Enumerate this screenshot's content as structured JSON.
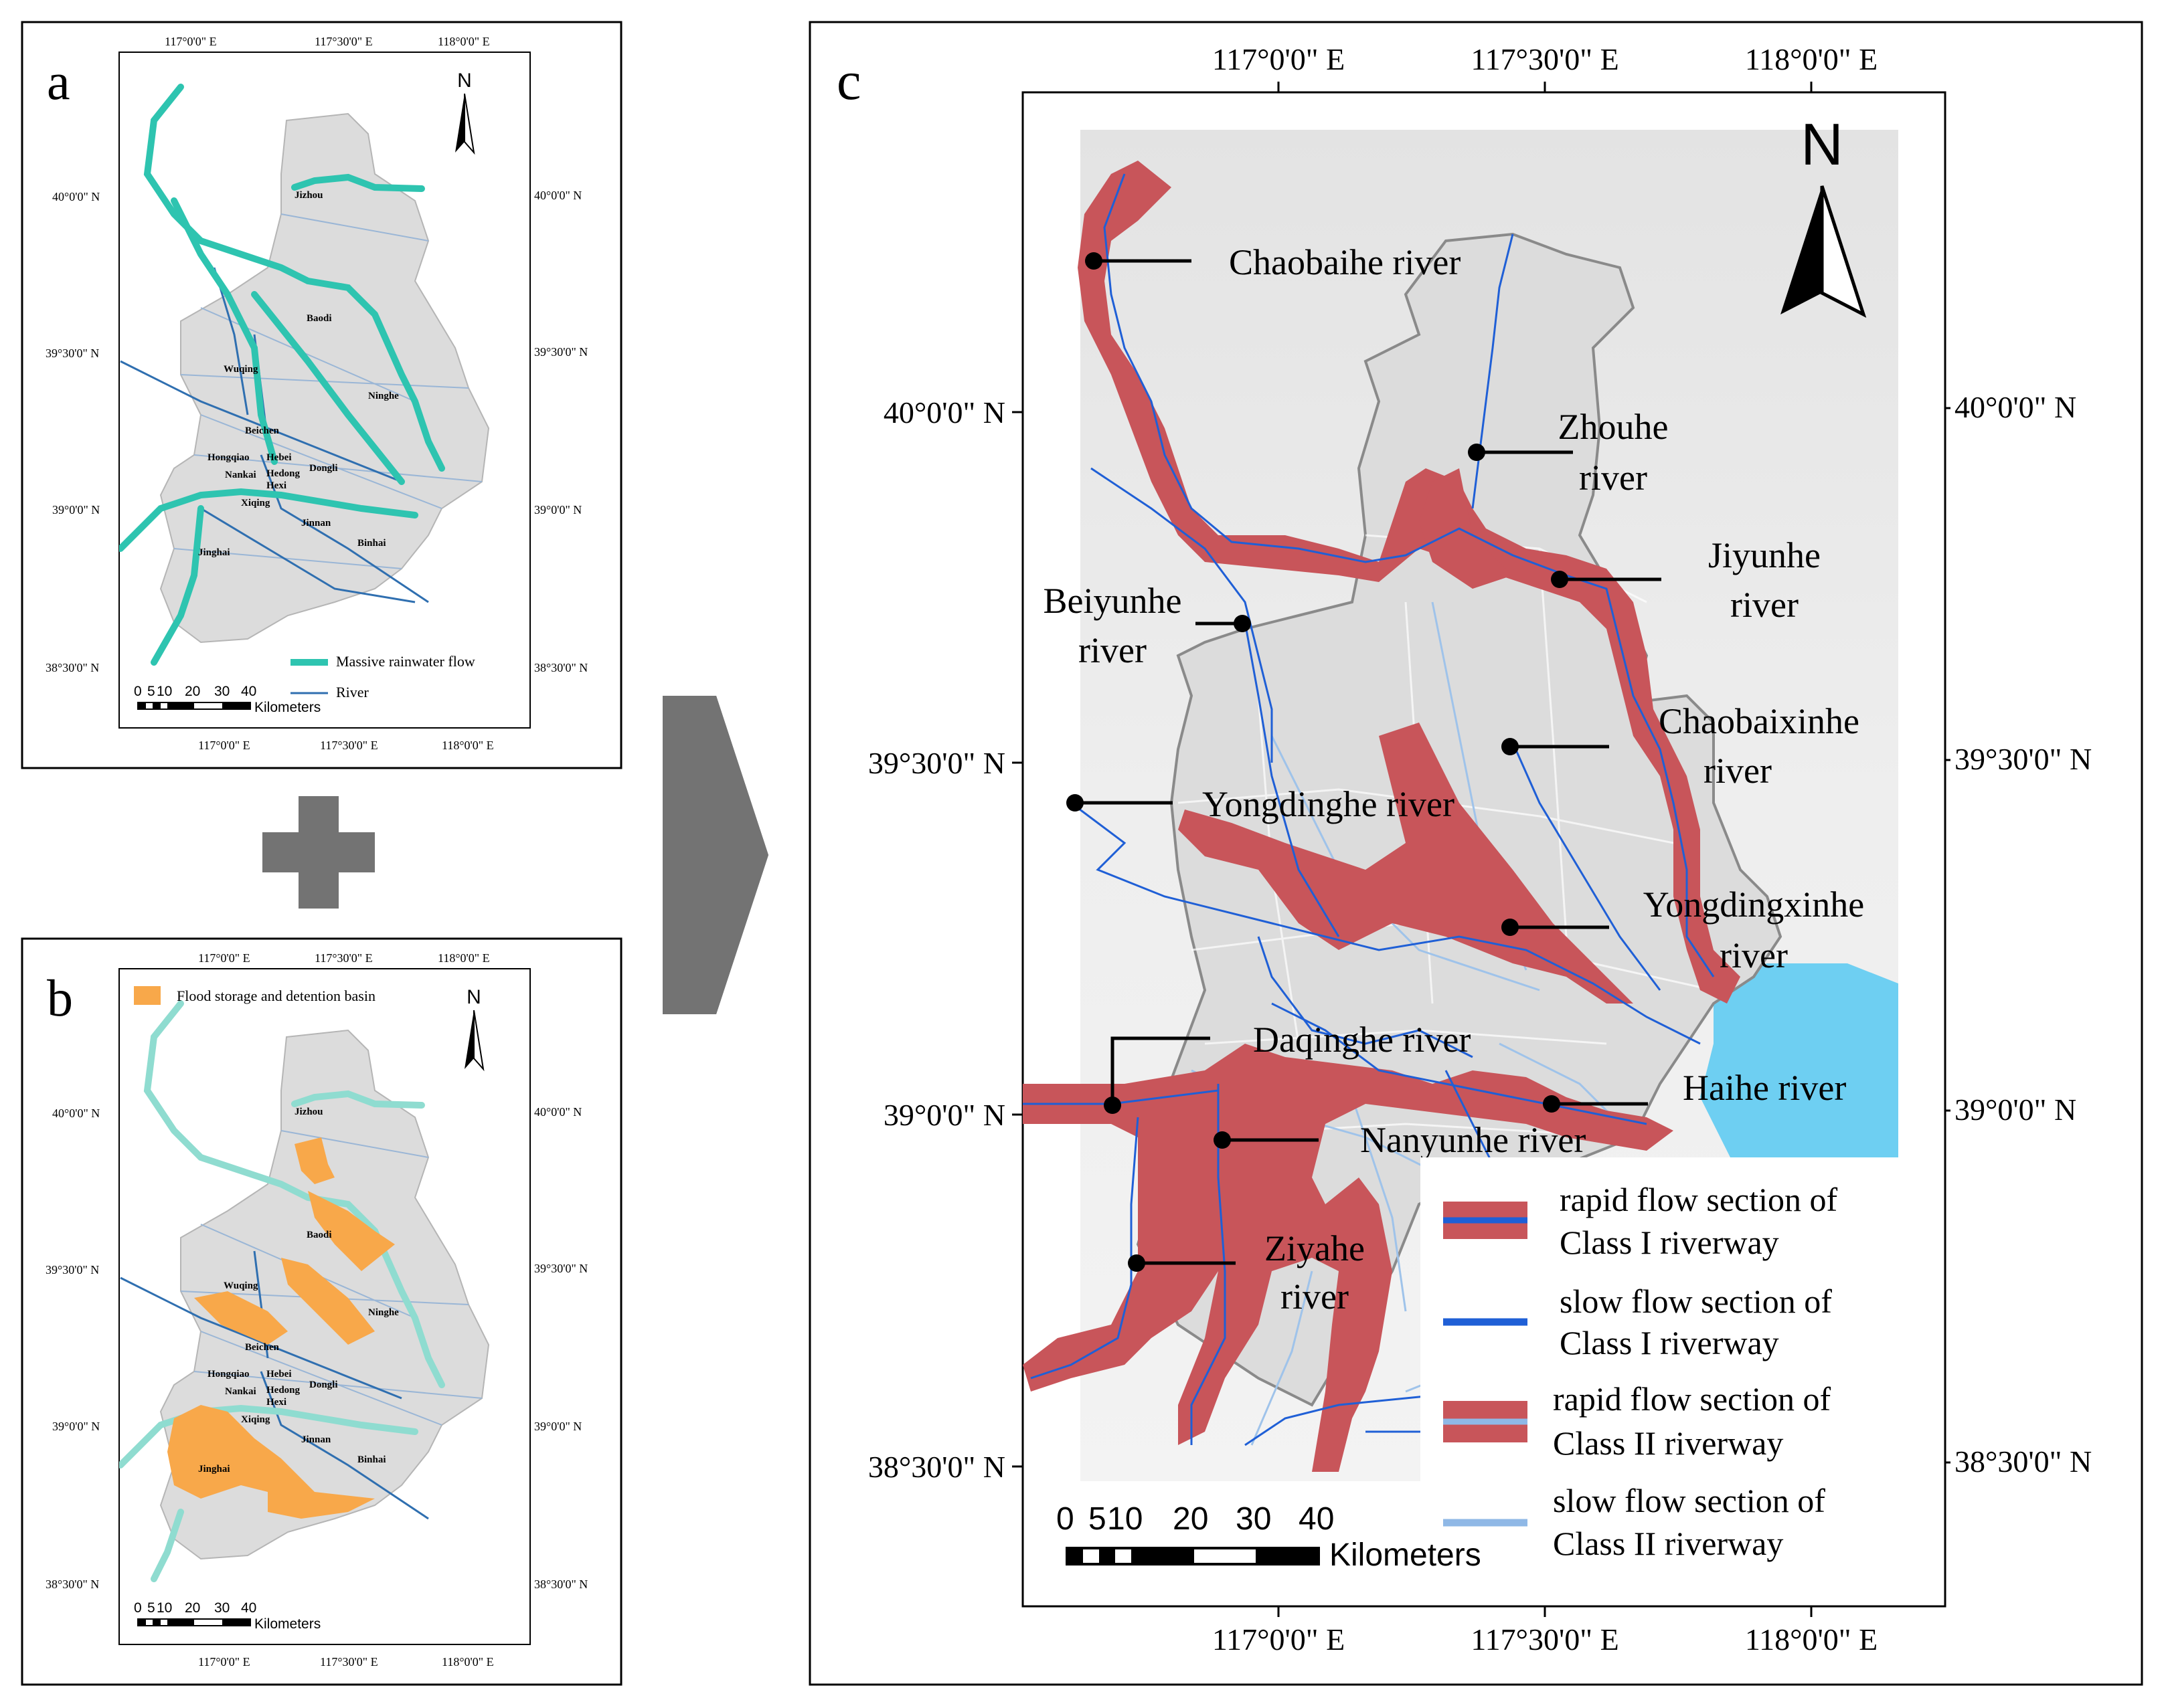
{
  "panels": {
    "a": {
      "letter": "a",
      "top_ticks": [
        "117°0'0\" E",
        "117°30'0\" E",
        "118°0'0\" E"
      ],
      "bottom_ticks": [
        "117°0'0\" E",
        "117°30'0\" E",
        "118°0'0\" E"
      ],
      "left_ticks": [
        "40°0'0\" N",
        "39°30'0\" N",
        "39°0'0\" N",
        "38°30'0\" N"
      ],
      "right_ticks": [
        "40°0'0\" N",
        "39°30'0\" N",
        "39°0'0\" N",
        "38°30'0\" N"
      ],
      "north": "N",
      "places": [
        "Jizhou",
        "Baodi",
        "Wuqing",
        "Ninghe",
        "Beichen",
        "Hongqiao",
        "Hebei",
        "Nankai",
        "Hedong",
        "Dongli",
        "Hexi",
        "Xiqing",
        "Jinnan",
        "Jinghai",
        "Binhai"
      ],
      "legend": {
        "rainwater": "Massive rainwater flow",
        "river": "River"
      },
      "scale": {
        "ticks": [
          "0",
          "5",
          "10",
          "20",
          "30",
          "40"
        ],
        "unit": "Kilometers"
      }
    },
    "b": {
      "letter": "b",
      "top_ticks": [
        "117°0'0\" E",
        "117°30'0\" E",
        "118°0'0\" E"
      ],
      "bottom_ticks": [
        "117°0'0\" E",
        "117°30'0\" E",
        "118°0'0\" E"
      ],
      "left_ticks": [
        "40°0'0\" N",
        "39°30'0\" N",
        "39°0'0\" N",
        "38°30'0\" N"
      ],
      "right_ticks": [
        "40°0'0\" N",
        "39°30'0\" N",
        "39°0'0\" N",
        "38°30'0\" N"
      ],
      "north": "N",
      "places": [
        "Jizhou",
        "Baodi",
        "Wuqing",
        "Ninghe",
        "Beichen",
        "Hongqiao",
        "Hebei",
        "Nankai",
        "Hedong",
        "Dongli",
        "Hexi",
        "Xiqing",
        "Jinnan",
        "Jinghai",
        "Binhai"
      ],
      "legend": {
        "basin": "Flood storage and detention basin"
      },
      "scale": {
        "ticks": [
          "0",
          "5",
          "10",
          "20",
          "30",
          "40"
        ],
        "unit": "Kilometers"
      }
    },
    "c": {
      "letter": "c",
      "top_ticks": [
        "117°0'0\" E",
        "117°30'0\" E",
        "118°0'0\" E"
      ],
      "bottom_ticks": [
        "117°0'0\" E",
        "117°30'0\" E",
        "118°0'0\" E"
      ],
      "left_ticks": [
        "40°0'0\" N",
        "39°30'0\" N",
        "39°0'0\" N",
        "38°30'0\" N"
      ],
      "right_ticks": [
        "40°0'0\" N",
        "39°30'0\" N",
        "39°0'0\" N",
        "38°30'0\" N"
      ],
      "north": "N",
      "rivers": [
        {
          "line1": "Chaobaihe river",
          "line2": ""
        },
        {
          "line1": "Zhouhe",
          "line2": "river"
        },
        {
          "line1": "Jiyunhe",
          "line2": "river"
        },
        {
          "line1": "Beiyunhe",
          "line2": "river"
        },
        {
          "line1": "Chaobaixinhe",
          "line2": "river"
        },
        {
          "line1": "Yongdinghe river",
          "line2": ""
        },
        {
          "line1": "Yongdingxinhe",
          "line2": "river"
        },
        {
          "line1": "Daqinghe river",
          "line2": ""
        },
        {
          "line1": "Haihe river",
          "line2": ""
        },
        {
          "line1": "Nanyunhe river",
          "line2": ""
        },
        {
          "line1": "Ziyahe",
          "line2": "river"
        }
      ],
      "legend": [
        {
          "line1": "rapid flow section of",
          "line2": "Class I riverway"
        },
        {
          "line1": "slow flow section of",
          "line2": "Class I riverway"
        },
        {
          "line1": "rapid flow section of",
          "line2": "Class II riverway"
        },
        {
          "line1": "slow flow section of",
          "line2": "Class II riverway"
        }
      ],
      "scale": {
        "ticks": [
          "0",
          "5",
          "10",
          "20",
          "30",
          "40"
        ],
        "unit": "Kilometers"
      }
    }
  },
  "colors": {
    "land": "#dcdcdc",
    "teal": "#2ec4b0",
    "light_teal": "#8fdcd0",
    "river_dark": "#2f6fb0",
    "river_blue": "#1f5fd6",
    "river_light": "#8fb8e6",
    "basin": "#f8a84a",
    "rapid": "#c8555a",
    "sea": "#6ecff2",
    "arrow": "#737373"
  }
}
